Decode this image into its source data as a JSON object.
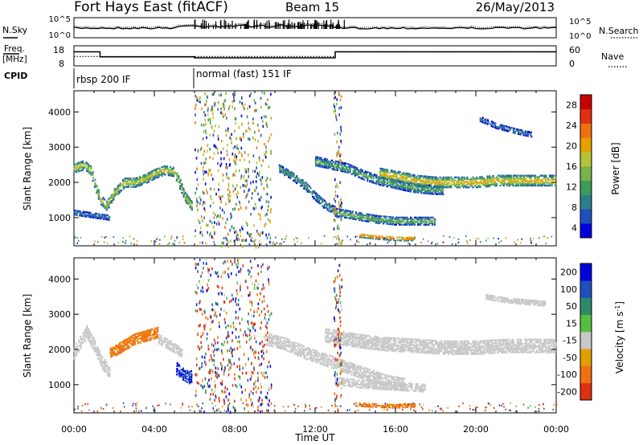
{
  "header": {
    "title": "Fort Hays East (fitACF)",
    "beam": "Beam 15",
    "date": "26/May/2013"
  },
  "left_labels": {
    "nsky": "N.Sky",
    "freq": "Freq.",
    "freq_unit": "[MHz]",
    "cpid": "CPID"
  },
  "right_labels": {
    "nsearch": "N.Search",
    "nave": "Nave"
  },
  "cpid_labels": [
    "rbsp 200 IF",
    "normal (fast) 151 IF"
  ],
  "colors": {
    "axis": "#000000",
    "power_scale": [
      "#0000dd",
      "#1f4fbf",
      "#2e7d8a",
      "#3c9a5a",
      "#7ab34a",
      "#b5c43a",
      "#e6a000",
      "#f07010",
      "#e03010",
      "#c80000"
    ],
    "velocity_scale": [
      "#0000dd",
      "#1f4fbf",
      "#2e8a6a",
      "#55c040",
      "#c8c8c8",
      "#e0a000",
      "#f07010",
      "#e03010"
    ]
  },
  "chart_data": [
    {
      "type": "line",
      "name": "noise-panel",
      "series": [
        {
          "name": "N.Sky"
        },
        {
          "name": "N.Search"
        }
      ],
      "left_ticks": [
        "10^5",
        "10^0"
      ],
      "right_ticks": [
        "10^5",
        "10^0"
      ]
    },
    {
      "type": "line",
      "name": "freq-nave-panel",
      "left_ticks": [
        "18",
        "8"
      ],
      "right_ticks": [
        "60",
        "0"
      ],
      "series": [
        {
          "name": "Freq.",
          "x": [
            0,
            1.3,
            1.3,
            6.0,
            6.0,
            13.0,
            13.0,
            24.0
          ],
          "values": [
            15,
            15,
            12.5,
            12.5,
            12,
            12,
            15,
            15
          ]
        },
        {
          "name": "Nave",
          "x": [
            0,
            13.0,
            13.0,
            24.0
          ],
          "values": [
            28,
            28,
            42,
            42
          ]
        }
      ],
      "cpid_change_hours": [
        6.0
      ]
    },
    {
      "type": "heatmap",
      "name": "power-panel",
      "ylabel": "Slant Range [km]",
      "yticks": [
        1000,
        2000,
        3000,
        4000
      ],
      "ylim": [
        200,
        4600
      ],
      "colorbar": {
        "label": "Power [dB]",
        "ticks": [
          "28",
          "24",
          "20",
          "16",
          "12",
          "8",
          "4"
        ],
        "range": [
          0,
          30
        ]
      },
      "echo_regions": [
        {
          "x": [
            0.0,
            0.2,
            0.5,
            0.8,
            1.0,
            1.3,
            1.6,
            2.0,
            2.5,
            3.0,
            3.5,
            4.0,
            4.5,
            5.0,
            5.5,
            5.9
          ],
          "y": [
            2400,
            2450,
            2500,
            2350,
            2000,
            1500,
            1350,
            1700,
            2000,
            2000,
            2100,
            2250,
            2350,
            2300,
            1600,
            1300
          ],
          "width": 260,
          "value": 18
        },
        {
          "x": [
            0.0,
            0.6,
            1.2,
            1.8
          ],
          "y": [
            1150,
            1100,
            1050,
            1000
          ],
          "width": 140,
          "value": 8
        },
        {
          "x": [
            10.2,
            10.8,
            11.5,
            12.0,
            12.5,
            13.0
          ],
          "y": [
            2400,
            2200,
            1900,
            1600,
            1350,
            1200
          ],
          "width": 220,
          "value": 11
        },
        {
          "x": [
            12.0,
            12.8,
            13.6,
            14.4,
            15.2,
            16.0,
            16.8,
            17.6,
            18.4
          ],
          "y": [
            2600,
            2500,
            2400,
            2200,
            2050,
            1950,
            1850,
            1800,
            1780
          ],
          "width": 240,
          "value": 12
        },
        {
          "x": [
            15.2,
            16.2,
            17.0,
            18.0,
            19.0,
            20.0,
            21.0,
            22.0,
            23.0,
            24.0
          ],
          "y": [
            2250,
            2150,
            2050,
            2000,
            2000,
            2000,
            2050,
            2050,
            2050,
            2050
          ],
          "width": 280,
          "value": 21
        },
        {
          "x": [
            13.0,
            14.0,
            15.0,
            16.0,
            17.0,
            18.0
          ],
          "y": [
            1150,
            1050,
            950,
            900,
            900,
            900
          ],
          "width": 200,
          "value": 14
        },
        {
          "x": [
            14.2,
            15.0,
            15.8,
            16.5,
            17.0
          ],
          "y": [
            500,
            450,
            420,
            400,
            420
          ],
          "width": 110,
          "value": 27
        },
        {
          "x": [
            20.2,
            21.0,
            22.0,
            22.8
          ],
          "y": [
            3800,
            3600,
            3450,
            3350
          ],
          "width": 130,
          "value": 9
        }
      ],
      "scatter_bands": [
        [
          6.0,
          9.8
        ],
        [
          12.9,
          13.3
        ],
        [
          0.0,
          24.0
        ]
      ]
    },
    {
      "type": "heatmap",
      "name": "velocity-panel",
      "ylabel": "Slant Range [km]",
      "xlabel": "Time UT",
      "yticks": [
        1000,
        2000,
        3000,
        4000
      ],
      "ylim": [
        200,
        4600
      ],
      "xticks": [
        "00:00",
        "04:00",
        "08:00",
        "12:00",
        "16:00",
        "20:00",
        "00:00"
      ],
      "xlim": [
        0,
        24
      ],
      "colorbar": {
        "label": "Velocity [m s^-1]",
        "ticks": [
          "200",
          "100",
          "50",
          "15",
          "-15",
          "-50",
          "-100",
          "-200"
        ],
        "range": [
          -250,
          250
        ]
      },
      "echo_regions": [
        {
          "x": [
            0.0,
            0.3,
            0.6,
            1.0,
            1.4,
            1.8
          ],
          "y": [
            1900,
            2200,
            2500,
            2100,
            1600,
            1300
          ],
          "width": 320,
          "value": 0
        },
        {
          "x": [
            1.8,
            2.4,
            3.0,
            3.6,
            4.2
          ],
          "y": [
            1900,
            2100,
            2300,
            2400,
            2500
          ],
          "width": 300,
          "value": -60
        },
        {
          "x": [
            4.2,
            4.8,
            5.4
          ],
          "y": [
            2300,
            2100,
            1900
          ],
          "width": 260,
          "value": 0
        },
        {
          "x": [
            5.1,
            5.4,
            5.7,
            5.9
          ],
          "y": [
            1450,
            1300,
            1200,
            1250
          ],
          "width": 320,
          "value": 200
        },
        {
          "x": [
            9.5,
            10.5,
            11.5,
            12.5,
            13.5,
            14.5,
            15.5,
            16.5
          ],
          "y": [
            2300,
            2150,
            1900,
            1700,
            1500,
            1300,
            1100,
            1000
          ],
          "width": 320,
          "value": 0
        },
        {
          "x": [
            12.5,
            14.0,
            15.5,
            17.0,
            18.5,
            20.0,
            21.5,
            23.0,
            24.0
          ],
          "y": [
            2400,
            2250,
            2150,
            2100,
            2050,
            2050,
            2100,
            2100,
            2100
          ],
          "width": 360,
          "value": 0
        },
        {
          "x": [
            13.0,
            14.5,
            16.0,
            17.5
          ],
          "y": [
            1100,
            1000,
            950,
            900
          ],
          "width": 200,
          "value": 0
        },
        {
          "x": [
            14.0,
            15.0,
            16.0,
            17.0
          ],
          "y": [
            450,
            420,
            400,
            430
          ],
          "width": 110,
          "value": -60
        },
        {
          "x": [
            20.5,
            21.5,
            22.5,
            23.5
          ],
          "y": [
            3500,
            3400,
            3350,
            3300
          ],
          "width": 140,
          "value": 0
        }
      ],
      "scatter_bands": [
        [
          6.0,
          9.8
        ],
        [
          12.9,
          13.3
        ],
        [
          0.0,
          24.0
        ]
      ]
    }
  ]
}
